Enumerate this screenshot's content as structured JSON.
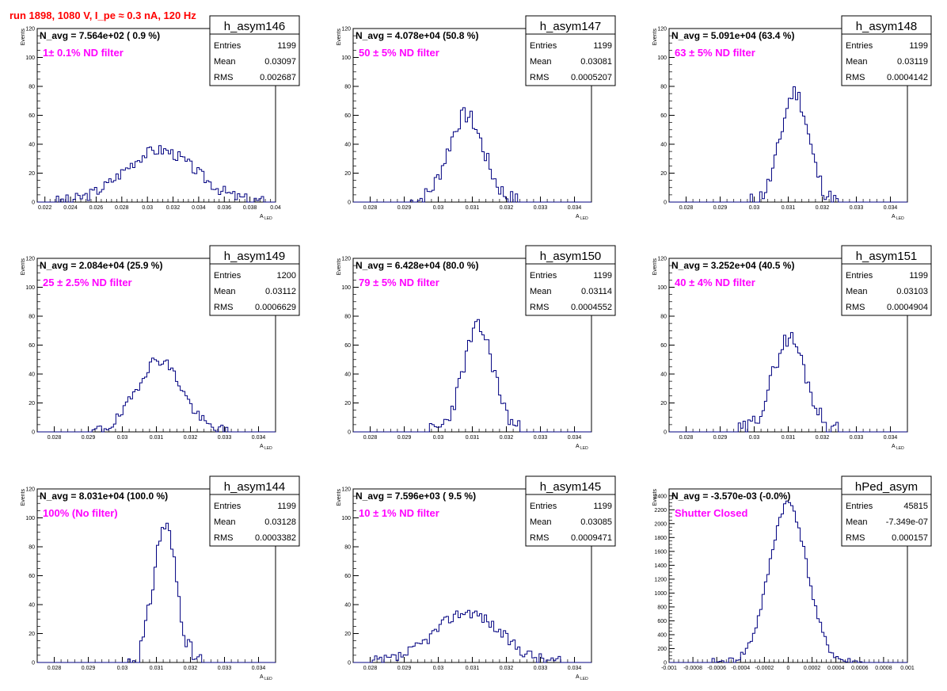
{
  "header": {
    "title": "run 1898,  1080 V, I_pe ≈ 0.3 nA, 120 Hz",
    "title_color": "#ff0000"
  },
  "colors": {
    "histogram_line": "#000080",
    "annotation": "#ff00ff"
  },
  "stats_labels": {
    "entries": "Entries",
    "mean": "Mean",
    "rms": "RMS"
  },
  "chart_data": [
    {
      "type": "bar",
      "name": "h_asym146",
      "n_avg": "N_avg = 7.564e+02 ( 0.9 %)",
      "annotation": "1± 0.1% ND filter",
      "stats": {
        "entries": "1199",
        "mean": "0.03097",
        "rms": "0.002687"
      },
      "xlabel": "A",
      "xlabel_sub": "LED",
      "ylabel": "Events",
      "xlim": [
        0.0214,
        0.04
      ],
      "ylim": [
        0,
        120
      ],
      "xticks": [
        0.022,
        0.024,
        0.026,
        0.028,
        0.03,
        0.032,
        0.034,
        0.036,
        0.038,
        0.04
      ],
      "xtick_labels": [
        "0.022",
        "0.024",
        "0.026",
        "0.028",
        "0.03",
        "0.032",
        "0.034",
        "0.036",
        "0.038",
        "0.04"
      ],
      "yticks": [
        0,
        20,
        40,
        60,
        80,
        100,
        120
      ],
      "ytick_labels": [
        "0",
        "20",
        "40",
        "60",
        "80",
        "100",
        "120"
      ],
      "dist": {
        "mu": 0.03097,
        "sigma": 0.0028,
        "peak": 36,
        "seed": 3,
        "noise": 4
      }
    },
    {
      "type": "bar",
      "name": "h_asym147",
      "n_avg": "N_avg = 4.078e+04 (50.8 %)",
      "annotation": "50 ± 5% ND filter",
      "stats": {
        "entries": "1199",
        "mean": "0.03081",
        "rms": "0.0005207"
      },
      "xlabel": "A",
      "xlabel_sub": "LED",
      "ylabel": "Events",
      "xlim": [
        0.0275,
        0.0345
      ],
      "ylim": [
        0,
        120
      ],
      "xticks": [
        0.028,
        0.029,
        0.03,
        0.031,
        0.032,
        0.033,
        0.034
      ],
      "xtick_labels": [
        "0.028",
        "0.029",
        "0.03",
        "0.031",
        "0.032",
        "0.033",
        "0.034"
      ],
      "yticks": [
        0,
        20,
        40,
        60,
        80,
        100,
        120
      ],
      "ytick_labels": [
        "0",
        "20",
        "40",
        "60",
        "80",
        "100",
        "120"
      ],
      "dist": {
        "mu": 0.03081,
        "sigma": 0.00052,
        "peak": 60,
        "seed": 7,
        "noise": 6
      }
    },
    {
      "type": "bar",
      "name": "h_asym148",
      "n_avg": "N_avg = 5.091e+04 (63.4 %)",
      "annotation": "63 ± 5% ND filter",
      "stats": {
        "entries": "1199",
        "mean": "0.03119",
        "rms": "0.0004142"
      },
      "xlabel": "A",
      "xlabel_sub": "LED",
      "ylabel": "Events",
      "xlim": [
        0.0275,
        0.0345
      ],
      "ylim": [
        0,
        120
      ],
      "xticks": [
        0.028,
        0.029,
        0.03,
        0.031,
        0.032,
        0.033,
        0.034
      ],
      "xtick_labels": [
        "0.028",
        "0.029",
        "0.03",
        "0.031",
        "0.032",
        "0.033",
        "0.034"
      ],
      "yticks": [
        0,
        20,
        40,
        60,
        80,
        100,
        120
      ],
      "ytick_labels": [
        "0",
        "20",
        "40",
        "60",
        "80",
        "100",
        "120"
      ],
      "dist": {
        "mu": 0.03119,
        "sigma": 0.00041,
        "peak": 76,
        "seed": 11,
        "noise": 6
      }
    },
    {
      "type": "bar",
      "name": "h_asym149",
      "n_avg": "N_avg = 2.084e+04 (25.9 %)",
      "annotation": "25 ± 2.5% ND filter",
      "stats": {
        "entries": "1200",
        "mean": "0.03112",
        "rms": "0.0006629"
      },
      "xlabel": "A",
      "xlabel_sub": "LED",
      "ylabel": "Events",
      "xlim": [
        0.0275,
        0.0345
      ],
      "ylim": [
        0,
        120
      ],
      "xticks": [
        0.028,
        0.029,
        0.03,
        0.031,
        0.032,
        0.033,
        0.034
      ],
      "xtick_labels": [
        "0.028",
        "0.029",
        "0.03",
        "0.031",
        "0.032",
        "0.033",
        "0.034"
      ],
      "yticks": [
        0,
        20,
        40,
        60,
        80,
        100,
        120
      ],
      "ytick_labels": [
        "0",
        "20",
        "40",
        "60",
        "80",
        "100",
        "120"
      ],
      "dist": {
        "mu": 0.03108,
        "sigma": 0.00066,
        "peak": 50,
        "seed": 19,
        "noise": 4
      }
    },
    {
      "type": "bar",
      "name": "h_asym150",
      "n_avg": "N_avg = 6.428e+04 (80.0 %)",
      "annotation": "79 ± 5% ND filter",
      "stats": {
        "entries": "1199",
        "mean": "0.03114",
        "rms": "0.0004552"
      },
      "xlabel": "A",
      "xlabel_sub": "LED",
      "ylabel": "Events",
      "xlim": [
        0.0275,
        0.0345
      ],
      "ylim": [
        0,
        120
      ],
      "xticks": [
        0.028,
        0.029,
        0.03,
        0.031,
        0.032,
        0.033,
        0.034
      ],
      "xtick_labels": [
        "0.028",
        "0.029",
        "0.03",
        "0.031",
        "0.032",
        "0.033",
        "0.034"
      ],
      "yticks": [
        0,
        20,
        40,
        60,
        80,
        100,
        120
      ],
      "ytick_labels": [
        "0",
        "20",
        "40",
        "60",
        "80",
        "100",
        "120"
      ],
      "dist": {
        "mu": 0.03118,
        "sigma": 0.00045,
        "peak": 72,
        "seed": 23,
        "noise": 6
      }
    },
    {
      "type": "bar",
      "name": "h_asym151",
      "n_avg": "N_avg = 3.252e+04 (40.5 %)",
      "annotation": "40 ± 4% ND filter",
      "stats": {
        "entries": "1199",
        "mean": "0.03103",
        "rms": "0.0004904"
      },
      "xlabel": "A",
      "xlabel_sub": "LED",
      "ylabel": "Events",
      "xlim": [
        0.0275,
        0.0345
      ],
      "ylim": [
        0,
        120
      ],
      "xticks": [
        0.028,
        0.029,
        0.03,
        0.031,
        0.032,
        0.033,
        0.034
      ],
      "xtick_labels": [
        "0.028",
        "0.029",
        "0.03",
        "0.031",
        "0.032",
        "0.033",
        "0.034"
      ],
      "yticks": [
        0,
        20,
        40,
        60,
        80,
        100,
        120
      ],
      "ytick_labels": [
        "0",
        "20",
        "40",
        "60",
        "80",
        "100",
        "120"
      ],
      "dist": {
        "mu": 0.03103,
        "sigma": 0.00049,
        "peak": 65,
        "seed": 29,
        "noise": 6
      }
    },
    {
      "type": "bar",
      "name": "h_asym144",
      "n_avg": "N_avg = 8.031e+04 (100.0 %)",
      "annotation": "100% (No filter)",
      "stats": {
        "entries": "1199",
        "mean": "0.03128",
        "rms": "0.0003382"
      },
      "xlabel": "A",
      "xlabel_sub": "LED",
      "ylabel": "Events",
      "xlim": [
        0.0275,
        0.0345
      ],
      "ylim": [
        0,
        120
      ],
      "xticks": [
        0.028,
        0.029,
        0.03,
        0.031,
        0.032,
        0.033,
        0.034
      ],
      "xtick_labels": [
        "0.028",
        "0.029",
        "0.03",
        "0.031",
        "0.032",
        "0.033",
        "0.034"
      ],
      "yticks": [
        0,
        20,
        40,
        60,
        80,
        100,
        120
      ],
      "ytick_labels": [
        "0",
        "20",
        "40",
        "60",
        "80",
        "100",
        "120"
      ],
      "dist": {
        "mu": 0.03125,
        "sigma": 0.00034,
        "peak": 95,
        "seed": 31,
        "noise": 7
      }
    },
    {
      "type": "bar",
      "name": "h_asym145",
      "n_avg": "N_avg = 7.596e+03 ( 9.5 %)",
      "annotation": "10 ± 1% ND filter",
      "stats": {
        "entries": "1199",
        "mean": "0.03085",
        "rms": "0.0009471"
      },
      "xlabel": "A",
      "xlabel_sub": "LED",
      "ylabel": "Events",
      "xlim": [
        0.0275,
        0.0345
      ],
      "ylim": [
        0,
        120
      ],
      "xticks": [
        0.028,
        0.029,
        0.03,
        0.031,
        0.032,
        0.033,
        0.034
      ],
      "xtick_labels": [
        "0.028",
        "0.029",
        "0.03",
        "0.031",
        "0.032",
        "0.033",
        "0.034"
      ],
      "yticks": [
        0,
        20,
        40,
        60,
        80,
        100,
        120
      ],
      "ytick_labels": [
        "0",
        "20",
        "40",
        "60",
        "80",
        "100",
        "120"
      ],
      "dist": {
        "mu": 0.03085,
        "sigma": 0.00095,
        "peak": 35,
        "seed": 37,
        "noise": 4
      }
    },
    {
      "type": "bar",
      "name": "hPed_asym",
      "n_avg": "N_avg = -3.570e-03 (-0.0%)",
      "annotation": "Shutter Closed",
      "stats": {
        "entries": "45815",
        "mean": "-7.349e-07",
        "rms": "0.000157"
      },
      "xlabel": "",
      "xlabel_sub": "",
      "ylabel": "Events",
      "xlim": [
        -0.001,
        0.001
      ],
      "ylim": [
        0,
        2500
      ],
      "xticks": [
        -0.001,
        -0.0008,
        -0.0006,
        -0.0004,
        -0.0002,
        0,
        0.0002,
        0.0004,
        0.0006,
        0.0008,
        0.001
      ],
      "xtick_labels": [
        "-0.001",
        "-0.0008",
        "-0.0006",
        "-0.0004",
        "-0.0002",
        "0",
        "0.0002",
        "0.0004",
        "0.0006",
        "0.0008",
        "0.001"
      ],
      "yticks": [
        0,
        200,
        400,
        600,
        800,
        1000,
        1200,
        1400,
        1600,
        1800,
        2000,
        2200,
        2400
      ],
      "ytick_labels": [
        "0",
        "200",
        "400",
        "600",
        "800",
        "1000",
        "1200",
        "1400",
        "1600",
        "1800",
        "2000",
        "2200",
        "2400"
      ],
      "dist": {
        "mu": -7e-07,
        "sigma": 0.000157,
        "peak": 2300,
        "seed": 41,
        "noise": 60
      }
    }
  ]
}
